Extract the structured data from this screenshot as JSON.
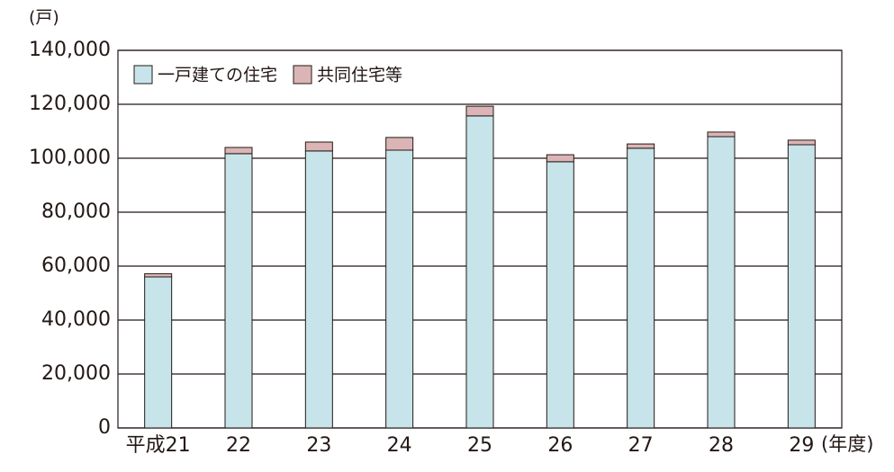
{
  "chart_data": {
    "type": "stacked_bar",
    "y_label": "(戸)",
    "x_label": "(年度)",
    "categories": [
      "平成21",
      "22",
      "23",
      "24",
      "25",
      "26",
      "27",
      "28",
      "29"
    ],
    "series": [
      {
        "name": "一戸建ての住宅",
        "color": "#c6e4ea",
        "values": [
          56000,
          101700,
          102700,
          103000,
          115700,
          98700,
          103700,
          108000,
          105000
        ]
      },
      {
        "name": "共同住宅等",
        "color": "#dbb5b6",
        "values": [
          1200,
          2300,
          3300,
          4700,
          3600,
          2600,
          1600,
          1700,
          1700
        ]
      }
    ],
    "ylim": [
      0,
      140000
    ],
    "yticks": [
      0,
      {
        "value": 20000,
        "label": "20,000"
      },
      {
        "value": 40000,
        "label": "40,000"
      },
      {
        "value": 60000,
        "label": "60,000"
      },
      {
        "value": 80000,
        "label": "80,000"
      },
      {
        "value": 100000,
        "label": "100,000"
      },
      {
        "value": 120000,
        "label": "120,000"
      },
      {
        "value": 140000,
        "label": "140,000"
      }
    ],
    "grid": true,
    "legend": "top-left"
  }
}
